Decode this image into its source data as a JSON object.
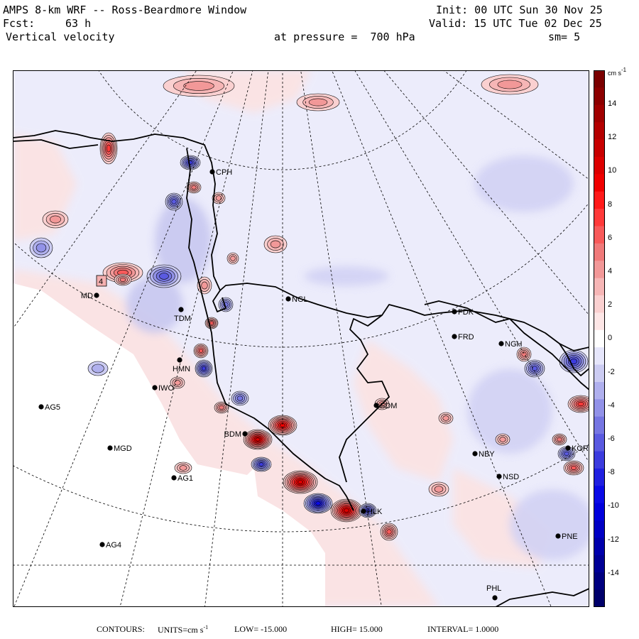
{
  "header": {
    "title": "AMPS 8-km WRF -- Ross-Beardmore Window",
    "forecast_label": "Fcst:",
    "forecast_hours": "63 h",
    "field": "Vertical velocity",
    "init": "Init: 00 UTC Sun 30 Nov 25",
    "valid": "Valid: 15 UTC Tue 02 Dec 25",
    "level": "at pressure =  700 hPa",
    "smoothing": "sm= 5"
  },
  "colorbar": {
    "unit": "cm s",
    "unit_sup": "-1",
    "labels": [
      "14",
      "12",
      "10",
      "8",
      "6",
      "4",
      "2",
      "0",
      "-2",
      "-4",
      "-6",
      "-8",
      "-10",
      "-12",
      "-14"
    ],
    "colors": {
      "r15": "#7a0000",
      "r14": "#8c0000",
      "r13": "#a00000",
      "r12": "#b40000",
      "r11": "#c80000",
      "r10": "#dc0000",
      "r9": "#f00000",
      "r8": "#ff1a1a",
      "r7": "#ff3a3a",
      "r6": "#f85a5a",
      "r5": "#f07a7a",
      "r4": "#f29898",
      "r3": "#f6b6b6",
      "r2": "#fad0d0",
      "r1": "#fde6e6",
      "b1": "#e6e6fb",
      "b2": "#ccccf2",
      "b3": "#b0b0ee",
      "b4": "#9292e8",
      "b5": "#7676e2",
      "b6": "#5a5ae0",
      "b7": "#3c3cde",
      "b8": "#2020e0",
      "b9": "#0a0ae6",
      "b10": "#0000dc",
      "b11": "#0000c4",
      "b12": "#0000ac",
      "b13": "#000096",
      "b14": "#000080",
      "b15": "#00006a"
    }
  },
  "map": {
    "label_highlight": "4",
    "stations": [
      {
        "id": "CPH"
      },
      {
        "id": "NGL"
      },
      {
        "id": "MD"
      },
      {
        "id": "TDM"
      },
      {
        "id": "FDK"
      },
      {
        "id": "FRD"
      },
      {
        "id": "NGH"
      },
      {
        "id": "HMN"
      },
      {
        "id": "IWO"
      },
      {
        "id": "AG5"
      },
      {
        "id": "SDM"
      },
      {
        "id": "BDM"
      },
      {
        "id": "MGD"
      },
      {
        "id": "NBY"
      },
      {
        "id": "KOR"
      },
      {
        "id": "AG1"
      },
      {
        "id": "NSD"
      },
      {
        "id": "HLK"
      },
      {
        "id": "PNE"
      },
      {
        "id": "AG4"
      },
      {
        "id": "PHL"
      }
    ]
  },
  "footer": {
    "contours_label": "CONTOURS:",
    "units_label": "UNITS=cm s",
    "units_sup": "-1",
    "low": "LOW= -15.000",
    "high": "HIGH= 15.000",
    "interval": "INTERVAL= 1.0000"
  }
}
